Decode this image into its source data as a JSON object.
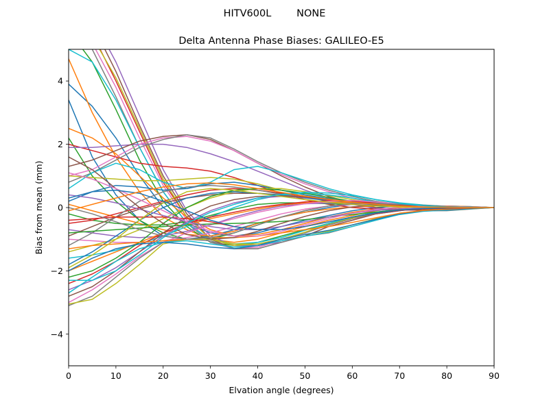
{
  "chart_data": {
    "type": "line",
    "suptitle": "HITV600L        NONE",
    "title": "Delta Antenna Phase Biases: GALILEO-E5",
    "xlabel": "Elvation angle (degrees)",
    "ylabel": "Bias from mean (mm)",
    "xlim": [
      0,
      90
    ],
    "ylim": [
      -5,
      5
    ],
    "xticks": [
      0,
      10,
      20,
      30,
      40,
      50,
      60,
      70,
      80,
      90
    ],
    "yticks": [
      -4,
      -2,
      0,
      2,
      4
    ],
    "grid": false,
    "legend": "none",
    "colors": [
      "#1f77b4",
      "#ff7f0e",
      "#2ca02c",
      "#d62728",
      "#9467bd",
      "#8c564b",
      "#e377c2",
      "#7f7f7f",
      "#bcbd22",
      "#17becf"
    ],
    "x": [
      0,
      5,
      10,
      15,
      20,
      25,
      30,
      35,
      40,
      45,
      50,
      55,
      60,
      65,
      70,
      75,
      80,
      85,
      90
    ],
    "series": [
      {
        "values": [
          3.9,
          3.2,
          2.2,
          1.0,
          0.0,
          -0.5,
          -0.8,
          -0.9,
          -0.8,
          -0.6,
          -0.4,
          -0.25,
          -0.1,
          0.0,
          0.05,
          0.05,
          0.05,
          0.03,
          0.0
        ]
      },
      {
        "values": [
          4.7,
          3.0,
          1.6,
          0.5,
          -0.3,
          -0.7,
          -1.0,
          -1.1,
          -1.0,
          -0.8,
          -0.6,
          -0.4,
          -0.25,
          -0.1,
          0.0,
          0.05,
          0.05,
          0.03,
          0.0
        ]
      },
      {
        "values": [
          5.6,
          4.6,
          3.1,
          1.5,
          0.2,
          -0.6,
          -1.1,
          -1.2,
          -1.1,
          -0.9,
          -0.7,
          -0.5,
          -0.3,
          -0.15,
          -0.05,
          0.0,
          0.03,
          0.02,
          0.0
        ]
      },
      {
        "values": [
          5.8,
          5.5,
          4.0,
          2.4,
          0.8,
          -0.3,
          -1.0,
          -1.2,
          -1.2,
          -1.0,
          -0.8,
          -0.55,
          -0.35,
          -0.2,
          -0.08,
          0.0,
          0.02,
          0.02,
          0.0
        ]
      },
      {
        "values": [
          6.0,
          6.0,
          4.6,
          2.9,
          1.2,
          -0.1,
          -0.9,
          -1.2,
          -1.2,
          -1.1,
          -0.9,
          -0.6,
          -0.4,
          -0.2,
          -0.1,
          0.0,
          0.03,
          0.02,
          0.0
        ]
      },
      {
        "values": [
          6.2,
          5.8,
          4.3,
          2.6,
          1.0,
          -0.2,
          -1.0,
          -1.3,
          -1.3,
          -1.1,
          -0.9,
          -0.6,
          -0.4,
          -0.2,
          -0.1,
          -0.02,
          0.02,
          0.02,
          0.0
        ]
      },
      {
        "values": [
          5.9,
          5.2,
          3.8,
          2.2,
          0.7,
          -0.4,
          -1.1,
          -1.3,
          -1.25,
          -1.05,
          -0.8,
          -0.55,
          -0.35,
          -0.18,
          -0.08,
          -0.01,
          0.02,
          0.01,
          0.0
        ]
      },
      {
        "values": [
          5.5,
          5.0,
          3.5,
          1.9,
          0.5,
          -0.5,
          -1.1,
          -1.25,
          -1.2,
          -1.0,
          -0.8,
          -0.55,
          -0.35,
          -0.18,
          -0.07,
          0.0,
          0.02,
          0.01,
          0.0
        ]
      },
      {
        "values": [
          5.7,
          5.4,
          4.1,
          2.5,
          0.9,
          -0.3,
          -1.0,
          -1.2,
          -1.15,
          -1.0,
          -0.78,
          -0.52,
          -0.33,
          -0.17,
          -0.07,
          0.0,
          0.02,
          0.01,
          0.0
        ]
      },
      {
        "values": [
          5.0,
          4.6,
          3.4,
          1.9,
          0.5,
          -0.5,
          -1.0,
          -1.15,
          -1.1,
          -0.95,
          -0.72,
          -0.5,
          -0.3,
          -0.15,
          -0.06,
          0.0,
          0.02,
          0.01,
          0.0
        ]
      },
      {
        "values": [
          3.4,
          1.6,
          0.4,
          -0.4,
          -0.9,
          -1.0,
          -0.9,
          -0.7,
          -0.5,
          -0.3,
          -0.15,
          0.0,
          0.1,
          0.1,
          0.08,
          0.05,
          0.03,
          0.02,
          0.0
        ]
      },
      {
        "values": [
          2.5,
          2.2,
          1.7,
          1.0,
          0.3,
          -0.3,
          -0.7,
          -0.9,
          -0.85,
          -0.7,
          -0.5,
          -0.3,
          -0.15,
          -0.05,
          0.0,
          0.03,
          0.03,
          0.02,
          0.0
        ]
      },
      {
        "values": [
          2.2,
          1.0,
          0.2,
          -0.4,
          -0.8,
          -1.0,
          -1.0,
          -0.8,
          -0.55,
          -0.3,
          -0.1,
          0.05,
          0.12,
          0.12,
          0.1,
          0.06,
          0.04,
          0.02,
          0.0
        ]
      },
      {
        "values": [
          2.0,
          1.8,
          1.6,
          1.4,
          1.3,
          1.25,
          1.15,
          0.95,
          0.7,
          0.45,
          0.25,
          0.1,
          0.0,
          -0.05,
          -0.08,
          -0.07,
          -0.04,
          -0.02,
          0.0
        ]
      },
      {
        "values": [
          1.9,
          1.9,
          1.95,
          2.0,
          2.0,
          1.9,
          1.7,
          1.45,
          1.15,
          0.85,
          0.55,
          0.3,
          0.1,
          -0.02,
          -0.08,
          -0.08,
          -0.05,
          -0.02,
          0.0
        ]
      },
      {
        "values": [
          1.3,
          1.5,
          1.8,
          2.1,
          2.25,
          2.3,
          2.15,
          1.8,
          1.4,
          1.0,
          0.65,
          0.35,
          0.15,
          0.0,
          -0.07,
          -0.08,
          -0.05,
          -0.02,
          0.0
        ]
      },
      {
        "values": [
          1.0,
          1.2,
          1.6,
          2.0,
          2.2,
          2.25,
          2.1,
          1.8,
          1.4,
          1.05,
          0.75,
          0.5,
          0.3,
          0.15,
          0.05,
          0.0,
          -0.01,
          -0.01,
          0.0
        ]
      },
      {
        "values": [
          0.8,
          1.1,
          1.5,
          1.9,
          2.15,
          2.3,
          2.2,
          1.85,
          1.45,
          1.1,
          0.8,
          0.55,
          0.35,
          0.2,
          0.1,
          0.04,
          0.01,
          0.0,
          0.0
        ]
      },
      {
        "values": [
          1.0,
          0.95,
          0.9,
          0.85,
          0.85,
          0.9,
          0.95,
          0.9,
          0.75,
          0.55,
          0.4,
          0.25,
          0.15,
          0.08,
          0.04,
          0.02,
          0.01,
          0.0,
          0.0
        ]
      },
      {
        "values": [
          0.6,
          1.1,
          1.4,
          1.2,
          0.8,
          0.6,
          0.8,
          1.2,
          1.3,
          1.1,
          0.85,
          0.6,
          0.4,
          0.25,
          0.15,
          0.08,
          0.04,
          0.02,
          0.0
        ]
      },
      {
        "values": [
          0.2,
          0.5,
          0.7,
          0.65,
          0.55,
          0.6,
          0.75,
          0.8,
          0.7,
          0.55,
          0.4,
          0.28,
          0.18,
          0.1,
          0.05,
          0.02,
          0.01,
          0.0,
          0.0
        ]
      },
      {
        "values": [
          0.1,
          -0.1,
          -0.3,
          -0.5,
          -0.7,
          -0.85,
          -0.9,
          -0.75,
          -0.5,
          -0.3,
          -0.15,
          -0.05,
          0.02,
          0.05,
          0.05,
          0.04,
          0.02,
          0.01,
          0.0
        ]
      },
      {
        "values": [
          -0.2,
          -0.4,
          -0.5,
          -0.55,
          -0.55,
          -0.45,
          -0.25,
          -0.05,
          0.1,
          0.15,
          0.15,
          0.12,
          0.1,
          0.06,
          0.04,
          0.02,
          0.01,
          0.0,
          0.0
        ]
      },
      {
        "values": [
          -0.5,
          -0.4,
          -0.2,
          0.0,
          0.2,
          0.4,
          0.55,
          0.6,
          0.55,
          0.45,
          0.35,
          0.25,
          0.17,
          0.1,
          0.05,
          0.03,
          0.01,
          0.0,
          0.0
        ]
      },
      {
        "values": [
          -0.7,
          -0.8,
          -0.9,
          -0.95,
          -0.9,
          -0.75,
          -0.55,
          -0.3,
          -0.1,
          0.05,
          0.12,
          0.14,
          0.13,
          0.1,
          0.06,
          0.03,
          0.02,
          0.01,
          0.0
        ]
      },
      {
        "values": [
          -0.9,
          -0.6,
          -0.3,
          -0.05,
          0.15,
          0.3,
          0.4,
          0.45,
          0.45,
          0.4,
          0.32,
          0.24,
          0.16,
          0.1,
          0.05,
          0.02,
          0.01,
          0.0,
          0.0
        ]
      },
      {
        "values": [
          -1.0,
          -1.05,
          -1.1,
          -1.1,
          -1.05,
          -0.95,
          -0.8,
          -0.6,
          -0.4,
          -0.2,
          -0.05,
          0.05,
          0.1,
          0.1,
          0.08,
          0.05,
          0.03,
          0.01,
          0.0
        ]
      },
      {
        "values": [
          -1.2,
          -0.8,
          -0.3,
          0.2,
          0.5,
          0.65,
          0.7,
          0.65,
          0.55,
          0.42,
          0.32,
          0.22,
          0.15,
          0.09,
          0.05,
          0.02,
          0.01,
          0.0,
          0.0
        ]
      },
      {
        "values": [
          -1.4,
          -1.2,
          -1.0,
          -0.7,
          -0.35,
          0.0,
          0.3,
          0.5,
          0.6,
          0.6,
          0.5,
          0.38,
          0.25,
          0.14,
          0.07,
          0.03,
          0.01,
          0.0,
          0.0
        ]
      },
      {
        "values": [
          -1.6,
          -1.5,
          -1.35,
          -1.15,
          -0.9,
          -0.6,
          -0.3,
          0.0,
          0.25,
          0.4,
          0.45,
          0.4,
          0.3,
          0.18,
          0.09,
          0.04,
          0.02,
          0.0,
          0.0
        ]
      },
      {
        "values": [
          -1.8,
          -1.4,
          -0.9,
          -0.4,
          0.0,
          0.3,
          0.45,
          0.5,
          0.45,
          0.38,
          0.3,
          0.22,
          0.15,
          0.09,
          0.05,
          0.02,
          0.01,
          0.0,
          0.0
        ]
      },
      {
        "values": [
          -2.0,
          -1.7,
          -1.4,
          -1.1,
          -0.8,
          -0.55,
          -0.35,
          -0.2,
          -0.05,
          0.08,
          0.15,
          0.18,
          0.16,
          0.12,
          0.07,
          0.03,
          0.01,
          0.0,
          0.0
        ]
      },
      {
        "values": [
          -2.2,
          -2.0,
          -1.6,
          -1.1,
          -0.5,
          0.0,
          0.35,
          0.55,
          0.6,
          0.55,
          0.45,
          0.32,
          0.2,
          0.11,
          0.05,
          0.02,
          0.01,
          0.0,
          0.0
        ]
      },
      {
        "values": [
          -2.4,
          -2.1,
          -1.7,
          -1.2,
          -0.8,
          -0.5,
          -0.3,
          -0.15,
          0.0,
          0.1,
          0.18,
          0.22,
          0.2,
          0.14,
          0.08,
          0.04,
          0.02,
          0.0,
          0.0
        ]
      },
      {
        "values": [
          -2.6,
          -2.3,
          -1.9,
          -1.4,
          -0.9,
          -0.45,
          -0.1,
          0.15,
          0.3,
          0.35,
          0.32,
          0.26,
          0.18,
          0.1,
          0.05,
          0.02,
          0.01,
          0.0,
          0.0
        ]
      },
      {
        "values": [
          -2.8,
          -2.5,
          -2.0,
          -1.4,
          -0.8,
          -0.3,
          0.05,
          0.25,
          0.35,
          0.37,
          0.33,
          0.26,
          0.18,
          0.1,
          0.05,
          0.02,
          0.01,
          0.0,
          0.0
        ]
      },
      {
        "values": [
          -3.0,
          -2.6,
          -2.1,
          -1.55,
          -1.1,
          -0.8,
          -0.55,
          -0.35,
          -0.15,
          0.0,
          0.12,
          0.2,
          0.22,
          0.18,
          0.11,
          0.05,
          0.02,
          0.01,
          0.0
        ]
      },
      {
        "values": [
          -3.1,
          -2.8,
          -2.2,
          -1.6,
          -1.1,
          -1.0,
          -1.05,
          -1.3,
          -1.3,
          -1.1,
          -0.9,
          -0.8,
          -0.6,
          -0.4,
          -0.2,
          -0.1,
          -0.1,
          -0.05,
          0.0
        ]
      },
      {
        "values": [
          -3.05,
          -2.9,
          -2.4,
          -1.8,
          -1.15,
          -1.0,
          -1.0,
          -1.15,
          -1.15,
          -1.0,
          -0.85,
          -0.75,
          -0.55,
          -0.35,
          -0.18,
          -0.1,
          -0.08,
          -0.04,
          0.0
        ]
      },
      {
        "values": [
          -2.7,
          -2.2,
          -1.7,
          -1.3,
          -1.1,
          -1.05,
          -1.15,
          -1.25,
          -1.2,
          -1.05,
          -0.9,
          -0.78,
          -0.6,
          -0.4,
          -0.22,
          -0.12,
          -0.08,
          -0.04,
          0.0
        ]
      },
      {
        "values": [
          -2.0,
          -1.6,
          -1.3,
          -1.15,
          -1.1,
          -1.15,
          -1.25,
          -1.3,
          -1.2,
          -1.0,
          -0.85,
          -0.72,
          -0.55,
          -0.37,
          -0.2,
          -0.1,
          -0.07,
          -0.03,
          0.0
        ]
      },
      {
        "values": [
          -1.3,
          -1.2,
          -1.15,
          -1.1,
          -1.05,
          -1.0,
          -0.95,
          -0.95,
          -0.9,
          -0.8,
          -0.7,
          -0.6,
          -0.47,
          -0.32,
          -0.18,
          -0.09,
          -0.05,
          -0.02,
          0.0
        ]
      },
      {
        "values": [
          -0.8,
          -0.75,
          -0.7,
          -0.65,
          -0.6,
          -0.55,
          -0.52,
          -0.5,
          -0.48,
          -0.44,
          -0.38,
          -0.3,
          -0.22,
          -0.14,
          -0.08,
          -0.04,
          -0.02,
          -0.01,
          0.0
        ]
      },
      {
        "values": [
          -0.4,
          -0.35,
          -0.3,
          -0.3,
          -0.3,
          -0.35,
          -0.45,
          -0.6,
          -0.7,
          -0.7,
          -0.6,
          -0.45,
          -0.3,
          -0.18,
          -0.09,
          -0.04,
          -0.02,
          -0.01,
          0.0
        ]
      },
      {
        "values": [
          0.4,
          0.3,
          0.15,
          -0.05,
          -0.25,
          -0.45,
          -0.6,
          -0.7,
          -0.7,
          -0.6,
          -0.45,
          -0.3,
          -0.18,
          -0.09,
          -0.04,
          -0.01,
          0.0,
          0.0,
          0.0
        ]
      },
      {
        "values": [
          1.6,
          1.2,
          0.6,
          0.0,
          -0.5,
          -0.85,
          -1.0,
          -0.95,
          -0.75,
          -0.5,
          -0.28,
          -0.1,
          0.02,
          0.08,
          0.09,
          0.07,
          0.04,
          0.02,
          0.0
        ]
      },
      {
        "values": [
          1.1,
          0.9,
          0.6,
          0.25,
          -0.1,
          -0.45,
          -0.75,
          -0.9,
          -0.9,
          -0.75,
          -0.55,
          -0.35,
          -0.18,
          -0.06,
          0.01,
          0.04,
          0.04,
          0.02,
          0.0
        ]
      },
      {
        "values": [
          0.0,
          -0.2,
          -0.45,
          -0.7,
          -0.9,
          -1.0,
          -0.95,
          -0.8,
          -0.55,
          -0.3,
          -0.1,
          0.05,
          0.12,
          0.13,
          0.1,
          0.06,
          0.03,
          0.01,
          0.0
        ]
      },
      {
        "values": [
          -1.9,
          -1.5,
          -1.0,
          -0.4,
          0.15,
          0.5,
          0.6,
          0.55,
          0.45,
          0.35,
          0.25,
          0.17,
          0.1,
          0.05,
          0.02,
          0.01,
          0.0,
          0.0,
          0.0
        ]
      },
      {
        "values": [
          -2.3,
          -2.3,
          -2.0,
          -1.5,
          -0.95,
          -0.5,
          -0.15,
          0.1,
          0.3,
          0.42,
          0.48,
          0.46,
          0.38,
          0.25,
          0.13,
          0.06,
          0.02,
          0.01,
          0.0
        ]
      },
      {
        "values": [
          0.3,
          0.5,
          0.55,
          0.45,
          0.2,
          -0.1,
          -0.4,
          -0.6,
          -0.7,
          -0.7,
          -0.6,
          -0.45,
          -0.3,
          -0.17,
          -0.08,
          -0.03,
          -0.01,
          0.0,
          0.0
        ]
      },
      {
        "values": [
          -0.1,
          0.1,
          0.3,
          0.5,
          0.65,
          0.75,
          0.78,
          0.72,
          0.6,
          0.48,
          0.36,
          0.26,
          0.17,
          0.1,
          0.05,
          0.02,
          0.01,
          0.0,
          0.0
        ]
      }
    ]
  }
}
